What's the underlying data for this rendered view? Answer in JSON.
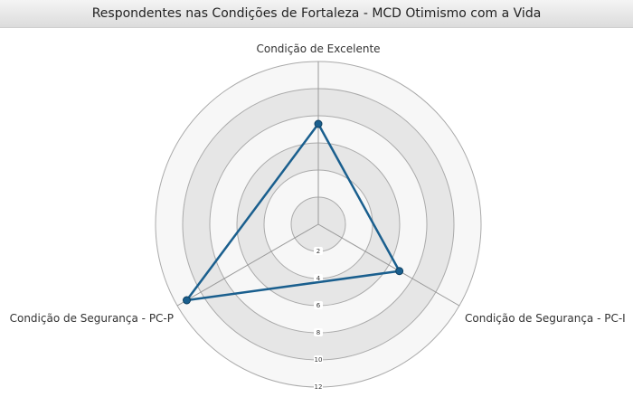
{
  "chart_data": {
    "type": "radar",
    "title": "Respondentes nas Condições de Fortaleza - MCD Otimismo com a Vida",
    "axes": [
      "Condição de Excelente",
      "Condição de Segurança - PC-I",
      "Condição de Segurança - PC-P"
    ],
    "r_ticks": [
      "2",
      "4",
      "6",
      "8",
      "10",
      "12"
    ],
    "r_range": [
      0,
      12
    ],
    "series": [
      {
        "values": [
          7.4,
          6.9,
          11.2
        ]
      }
    ],
    "colors": {
      "series_line": "#1a5f8e",
      "series_point": "#1a5f8e",
      "band_light": "#f7f7f7",
      "band_dark": "#e6e6e6",
      "ring_stroke": "#aaaaaa",
      "spoke": "#9a9a9a"
    }
  }
}
